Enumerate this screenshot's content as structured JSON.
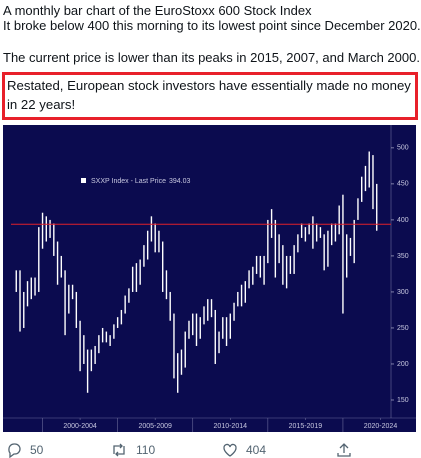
{
  "tweet": {
    "lines": [
      "A monthly bar chart of the EuroStoxx 600 Stock Index",
      "It broke below 400 this morning to its lowest point since December 2020.",
      "The current price is lower than its peaks in 2015, 2007, and March 2000."
    ],
    "highlight": "Restated, European stock investors have essentially made no money in 22 years!",
    "replies": "50",
    "retweets": "110",
    "likes": "404"
  },
  "chart": {
    "type": "ohlc",
    "series_name": "SXXP Index - Last Price",
    "last_price": 394.03,
    "bar_color": "#ffffff",
    "line_color": "#e0202a",
    "background": "#0b0b4f",
    "x": [
      1998.25,
      1998.5,
      1998.75,
      1999,
      1999.25,
      1999.5,
      1999.75,
      2000,
      2000.25,
      2000.5,
      2000.75,
      2001,
      2001.25,
      2001.5,
      2001.75,
      2002,
      2002.25,
      2002.5,
      2002.75,
      2003,
      2003.25,
      2003.5,
      2003.75,
      2004,
      2004.25,
      2004.5,
      2004.75,
      2005,
      2005.25,
      2005.5,
      2005.75,
      2006,
      2006.25,
      2006.5,
      2006.75,
      2007,
      2007.25,
      2007.5,
      2007.75,
      2008,
      2008.25,
      2008.5,
      2008.75,
      2009,
      2009.25,
      2009.5,
      2009.75,
      2010,
      2010.25,
      2010.5,
      2010.75,
      2011,
      2011.25,
      2011.5,
      2011.75,
      2012,
      2012.25,
      2012.5,
      2012.75,
      2013,
      2013.25,
      2013.5,
      2013.75,
      2014,
      2014.25,
      2014.5,
      2014.75,
      2015,
      2015.25,
      2015.5,
      2015.75,
      2016,
      2016.25,
      2016.5,
      2016.75,
      2017,
      2017.25,
      2017.5,
      2017.75,
      2018,
      2018.25,
      2018.5,
      2018.75,
      2019,
      2019.25,
      2019.5,
      2019.75,
      2020,
      2020.25,
      2020.5,
      2020.75,
      2021,
      2021.25,
      2021.5,
      2021.75,
      2022,
      2022.25
    ],
    "lows": [
      300,
      245,
      250,
      280,
      290,
      295,
      300,
      360,
      370,
      375,
      350,
      310,
      320,
      240,
      270,
      290,
      250,
      190,
      200,
      160,
      190,
      200,
      215,
      230,
      230,
      225,
      235,
      250,
      255,
      270,
      285,
      300,
      300,
      310,
      335,
      345,
      370,
      355,
      355,
      300,
      290,
      260,
      180,
      160,
      185,
      195,
      235,
      240,
      225,
      235,
      255,
      260,
      265,
      200,
      215,
      235,
      225,
      235,
      260,
      280,
      280,
      285,
      305,
      310,
      325,
      320,
      310,
      340,
      375,
      320,
      340,
      310,
      305,
      325,
      325,
      355,
      375,
      370,
      380,
      360,
      370,
      375,
      330,
      335,
      365,
      370,
      380,
      270,
      320,
      350,
      340,
      400,
      425,
      440,
      445,
      415,
      385
    ],
    "highs": [
      330,
      330,
      300,
      315,
      320,
      320,
      390,
      410,
      405,
      400,
      395,
      370,
      350,
      330,
      310,
      310,
      300,
      260,
      240,
      220,
      220,
      225,
      240,
      250,
      245,
      240,
      255,
      265,
      275,
      295,
      305,
      335,
      340,
      345,
      365,
      385,
      405,
      395,
      385,
      370,
      330,
      300,
      270,
      215,
      220,
      245,
      260,
      270,
      270,
      265,
      280,
      290,
      290,
      275,
      245,
      265,
      265,
      270,
      285,
      300,
      310,
      315,
      330,
      335,
      350,
      350,
      350,
      400,
      415,
      400,
      380,
      365,
      350,
      350,
      365,
      380,
      395,
      390,
      395,
      405,
      395,
      390,
      380,
      385,
      395,
      395,
      420,
      435,
      380,
      375,
      400,
      430,
      460,
      475,
      495,
      490,
      450
    ],
    "xlim": [
      1997.9,
      2023.2
    ],
    "xticks": [
      {
        "value": 2002.5,
        "label": "2000-2004"
      },
      {
        "value": 2007.5,
        "label": "2005-2009"
      },
      {
        "value": 2012.5,
        "label": "2010-2014"
      },
      {
        "value": 2017.5,
        "label": "2015-2019"
      },
      {
        "value": 2022.5,
        "label": "2020-2024"
      }
    ],
    "ylim": [
      125,
      529
    ],
    "yticks": [
      150,
      200,
      250,
      300,
      350,
      400,
      450,
      500
    ]
  }
}
